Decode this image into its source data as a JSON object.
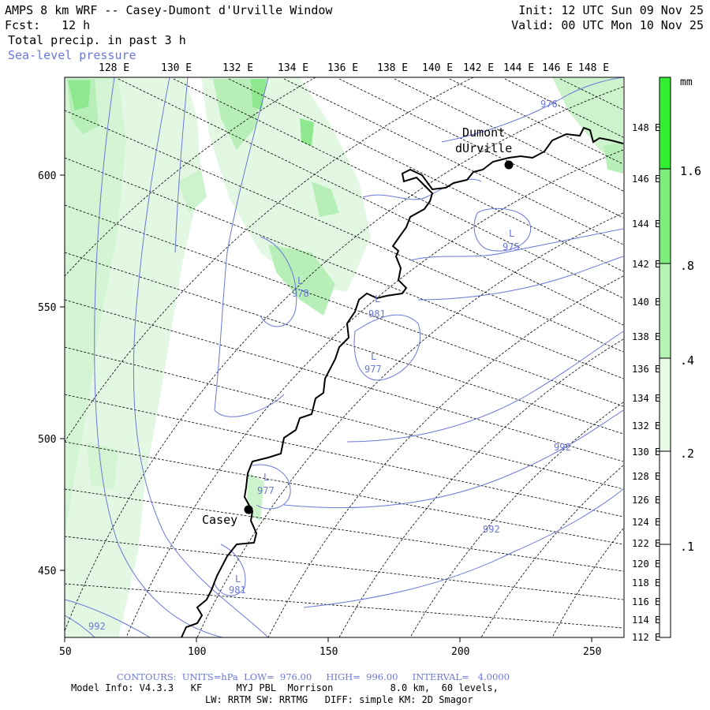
{
  "header": {
    "title": "AMPS 8 km WRF -- Casey-Dumont d'Urville Window",
    "init": "Init: 12 UTC Sun 09 Nov 25",
    "fcst_label": "Fcst:",
    "fcst_value": "12 h",
    "valid": "Valid: 00 UTC Mon 10 Nov 25",
    "field1": "Total precip. in past 3 h",
    "field2": "Sea-level pressure"
  },
  "map": {
    "top_lon_labels": [
      "128 E",
      "130 E",
      "132 E",
      "134 E",
      "136 E",
      "138 E",
      "140 E",
      "142 E",
      "144 E",
      "146 E",
      "148 E"
    ],
    "right_lon_labels": [
      "148 E",
      "146 E",
      "144 E",
      "142 E",
      "140 E",
      "138 E",
      "136 E",
      "134 E",
      "132 E",
      "130 E",
      "128 E",
      "126 E",
      "124 E",
      "122 E",
      "120 E",
      "118 E",
      "116 E",
      "114 E",
      "112 E"
    ],
    "left_y_labels": [
      "600",
      "550",
      "500",
      "450"
    ],
    "bottom_x_labels": [
      "50",
      "100",
      "150",
      "200",
      "250"
    ],
    "stations": [
      {
        "name_line1": "Dumont",
        "name_line2": "dUrville"
      },
      {
        "name_line1": "Casey"
      }
    ],
    "pressure_labels": [
      "976",
      "975",
      "978",
      "981",
      "977",
      "992",
      "992",
      "977",
      "981",
      "992"
    ],
    "low_marker": "L"
  },
  "colorbar": {
    "unit": "mm",
    "tick_labels": [
      "1.6",
      ".8",
      ".4",
      ".2",
      ".1"
    ],
    "colors": [
      "#33ee33",
      "#7bee7b",
      "#b6f3b6",
      "#e6fae6",
      "#ffffff"
    ]
  },
  "colors": {
    "contour": "#6a78d8",
    "coast": "#000000",
    "precip_light": "#cdf3cd",
    "precip_med": "#8ee88e",
    "precip_dark": "#4ee04e"
  },
  "footer": {
    "contours": "CONTOURS:  UNITS=hPa  LOW=  976.00     HIGH=  996.00     INTERVAL=   4.0000",
    "model_info": "Model Info: V4.3.3   KF      MYJ PBL  Morrison          8.0 km,  60 levels,",
    "physics": "LW: RRTM SW: RRTMG   DIFF: simple KM: 2D Smagor"
  }
}
